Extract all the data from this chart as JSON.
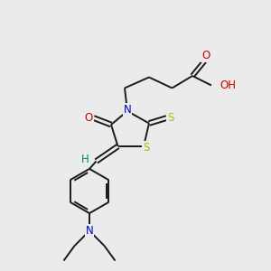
{
  "bg_color": "#ebebeb",
  "bond_color": "#1a1a1a",
  "atom_colors": {
    "O": "#cc0000",
    "N": "#0000cc",
    "S": "#b8b800",
    "H": "#008080",
    "C": "#1a1a1a"
  },
  "figsize": [
    3.0,
    3.0
  ],
  "dpi": 100,
  "xlim": [
    0,
    10
  ],
  "ylim": [
    0,
    10
  ],
  "bond_lw": 1.4,
  "fontsize": 8.5
}
